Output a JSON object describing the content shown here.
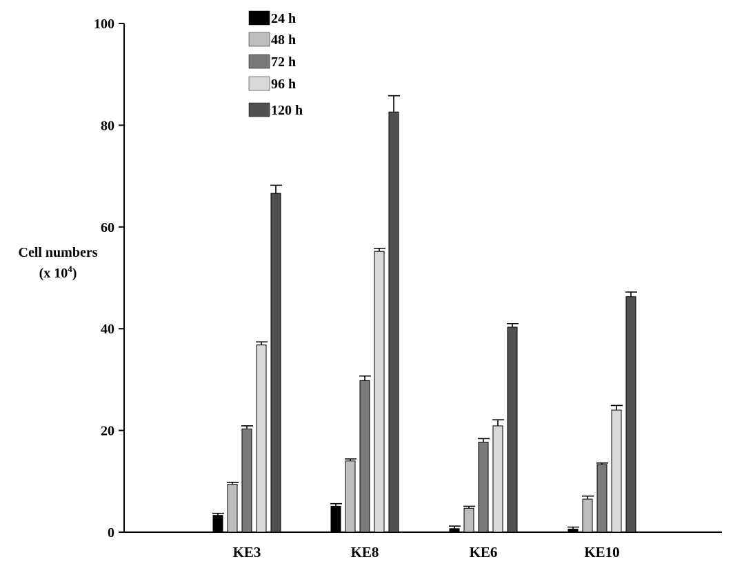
{
  "chart_data": {
    "type": "bar",
    "categories": [
      "KE3",
      "KE8",
      "KE6",
      "KE10"
    ],
    "series": [
      {
        "name": "24 h",
        "color": "#000000",
        "values": [
          3.3,
          5.1,
          0.7,
          0.6
        ],
        "errors": [
          0.4,
          0.5,
          0.5,
          0.4
        ]
      },
      {
        "name": "48 h",
        "color": "#bdbdbd",
        "values": [
          9.4,
          14.0,
          4.7,
          6.5
        ],
        "errors": [
          0.4,
          0.4,
          0.4,
          0.6
        ]
      },
      {
        "name": "72 h",
        "color": "#7a7a7a",
        "values": [
          20.3,
          29.8,
          17.7,
          13.3
        ],
        "errors": [
          0.6,
          0.9,
          0.7,
          0.3
        ]
      },
      {
        "name": "96 h",
        "color": "#d9d9d9",
        "values": [
          36.8,
          55.2,
          20.9,
          24.0
        ],
        "errors": [
          0.6,
          0.6,
          1.2,
          0.9
        ]
      },
      {
        "name": "120 h",
        "color": "#505050",
        "values": [
          66.6,
          82.6,
          40.3,
          46.3
        ],
        "errors": [
          1.6,
          3.2,
          0.7,
          0.9
        ]
      }
    ],
    "yticks": [
      "0",
      "20",
      "40",
      "60",
      "80",
      "100"
    ],
    "ylim": [
      0,
      100
    ],
    "ylabel_line1": "Cell numbers",
    "ylabel_line2_prefix": "(x 10",
    "ylabel_line2_sup": "4",
    "ylabel_line2_suffix": ")",
    "legend_position": "top-left-inside",
    "grid": false
  }
}
